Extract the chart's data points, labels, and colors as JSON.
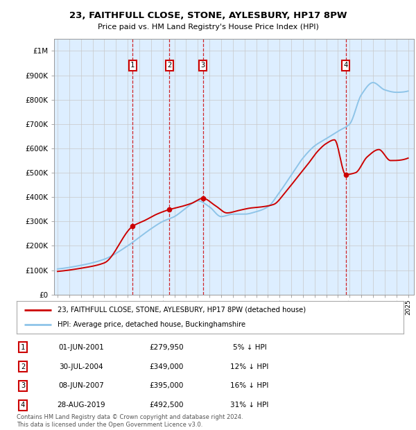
{
  "title": "23, FAITHFULL CLOSE, STONE, AYLESBURY, HP17 8PW",
  "subtitle": "Price paid vs. HM Land Registry's House Price Index (HPI)",
  "background_color": "#dde8f8",
  "plot_bg_color": "#ddeeff",
  "hpi_color": "#8ec4e8",
  "price_color": "#cc0000",
  "ylim": [
    0,
    1050000
  ],
  "yticks": [
    0,
    100000,
    200000,
    300000,
    400000,
    500000,
    600000,
    700000,
    800000,
    900000,
    1000000
  ],
  "ytick_labels": [
    "£0",
    "£100K",
    "£200K",
    "£300K",
    "£400K",
    "£500K",
    "£600K",
    "£700K",
    "£800K",
    "£900K",
    "£1M"
  ],
  "sale_dates_decimal": [
    2001.42,
    2004.58,
    2007.44,
    2019.66
  ],
  "sale_prices": [
    279950,
    349000,
    395000,
    492500
  ],
  "sale_labels": [
    "1",
    "2",
    "3",
    "4"
  ],
  "table_rows": [
    {
      "num": "1",
      "date": "01-JUN-2001",
      "price": "£279,950",
      "pct": "5% ↓ HPI"
    },
    {
      "num": "2",
      "date": "30-JUL-2004",
      "price": "£349,000",
      "pct": "12% ↓ HPI"
    },
    {
      "num": "3",
      "date": "08-JUN-2007",
      "price": "£395,000",
      "pct": "16% ↓ HPI"
    },
    {
      "num": "4",
      "date": "28-AUG-2019",
      "price": "£492,500",
      "pct": "31% ↓ HPI"
    }
  ],
  "legend_line1": "23, FAITHFULL CLOSE, STONE, AYLESBURY, HP17 8PW (detached house)",
  "legend_line2": "HPI: Average price, detached house, Buckinghamshire",
  "footnote": "Contains HM Land Registry data © Crown copyright and database right 2024.\nThis data is licensed under the Open Government Licence v3.0.",
  "hpi_curve_points": {
    "t": [
      1995,
      1997,
      1999,
      2001,
      2002,
      2003,
      2004,
      2005,
      2006,
      2007,
      2008,
      2009,
      2010,
      2011,
      2012,
      2013,
      2014,
      2015,
      2016,
      2017,
      2018,
      2019,
      2020,
      2021,
      2022,
      2023,
      2024,
      2025
    ],
    "v": [
      105000,
      120000,
      145000,
      200000,
      235000,
      270000,
      300000,
      320000,
      355000,
      385000,
      360000,
      320000,
      330000,
      330000,
      340000,
      360000,
      420000,
      490000,
      560000,
      610000,
      640000,
      670000,
      700000,
      820000,
      870000,
      840000,
      830000,
      835000
    ]
  },
  "price_curve_points": {
    "t": [
      1995,
      1997,
      1999,
      2001.42,
      2002.5,
      2003.5,
      2004.58,
      2005.5,
      2006.5,
      2007.44,
      2008.5,
      2009.5,
      2010.5,
      2011.5,
      2012.5,
      2013.5,
      2014.5,
      2015.5,
      2016.5,
      2017.3,
      2018.0,
      2018.7,
      2019.66,
      2020.5,
      2021.5,
      2022.5,
      2023.5,
      2025
    ],
    "v": [
      95000,
      108000,
      130000,
      279950,
      305000,
      330000,
      349000,
      360000,
      375000,
      395000,
      365000,
      335000,
      345000,
      355000,
      360000,
      370000,
      420000,
      480000,
      540000,
      590000,
      620000,
      635000,
      492500,
      500000,
      565000,
      595000,
      550000,
      560000
    ]
  }
}
